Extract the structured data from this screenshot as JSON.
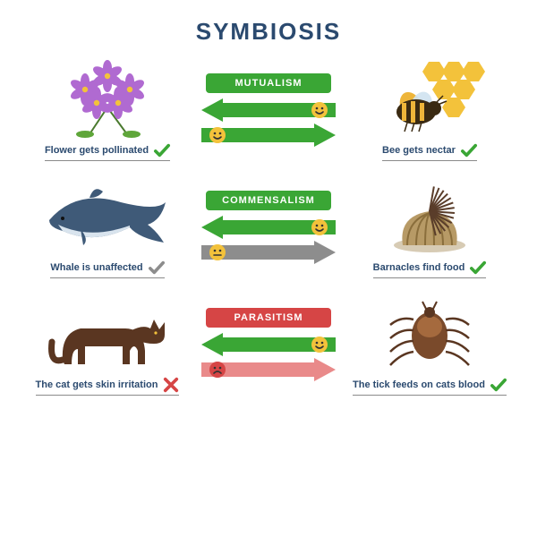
{
  "title": "SYMBIOSIS",
  "colors": {
    "title": "#2b4a6f",
    "positive": "#3aa635",
    "neutral": "#8d8d8d",
    "negative": "#d64545",
    "caption_border": "#8a8a8a",
    "caption_text": "#2b4a6f",
    "arrow_negative": "#e98a8a"
  },
  "rows": [
    {
      "type": {
        "label": "MUTUALISM",
        "bg": "#3aa635"
      },
      "left": {
        "organism": "flower",
        "caption": "Flower gets pollinated",
        "result": "positive"
      },
      "right": {
        "organism": "bee",
        "caption": "Bee gets nectar",
        "result": "positive"
      },
      "arrow_top": {
        "dir": "left",
        "color": "#3aa635",
        "face": "happy"
      },
      "arrow_bottom": {
        "dir": "right",
        "color": "#3aa635",
        "face": "happy"
      }
    },
    {
      "type": {
        "label": "COMMENSALISM",
        "bg": "#3aa635"
      },
      "left": {
        "organism": "whale",
        "caption": "Whale is unaffected",
        "result": "neutral"
      },
      "right": {
        "organism": "barnacle",
        "caption": "Barnacles find food",
        "result": "positive"
      },
      "arrow_top": {
        "dir": "left",
        "color": "#3aa635",
        "face": "happy"
      },
      "arrow_bottom": {
        "dir": "right",
        "color": "#8d8d8d",
        "face": "neutral"
      }
    },
    {
      "type": {
        "label": "PARASITISM",
        "bg": "#d64545"
      },
      "left": {
        "organism": "cat",
        "caption": "The cat gets skin irritation",
        "result": "negative"
      },
      "right": {
        "organism": "tick",
        "caption": "The tick feeds on cats blood",
        "result": "positive"
      },
      "arrow_top": {
        "dir": "left",
        "color": "#3aa635",
        "face": "happy"
      },
      "arrow_bottom": {
        "dir": "right",
        "color": "#e98a8a",
        "face": "sad"
      }
    }
  ]
}
